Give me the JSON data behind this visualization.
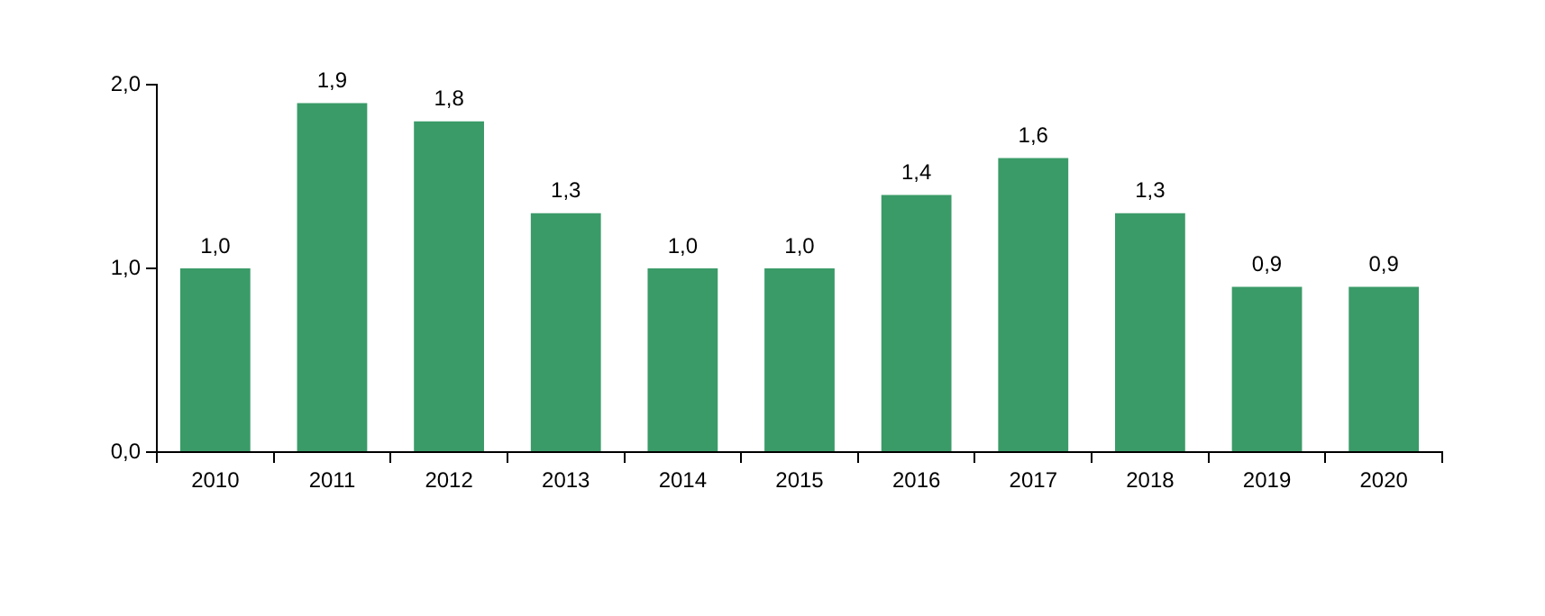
{
  "chart_data": {
    "type": "bar",
    "categories": [
      "2010",
      "2011",
      "2012",
      "2013",
      "2014",
      "2015",
      "2016",
      "2017",
      "2018",
      "2019",
      "2020"
    ],
    "values": [
      1.0,
      1.9,
      1.8,
      1.3,
      1.0,
      1.0,
      1.4,
      1.6,
      1.3,
      0.9,
      0.9
    ],
    "value_labels": [
      "1,0",
      "1,9",
      "1,8",
      "1,3",
      "1,0",
      "1,0",
      "1,4",
      "1,6",
      "1,3",
      "0,9",
      "0,9"
    ],
    "color": "#3a9b68",
    "ylim": [
      0,
      2
    ],
    "yticks": [
      {
        "value": 0,
        "label": "0,0"
      },
      {
        "value": 1,
        "label": "1,0"
      },
      {
        "value": 2,
        "label": "2,0"
      }
    ],
    "grid": false,
    "legend": false
  }
}
